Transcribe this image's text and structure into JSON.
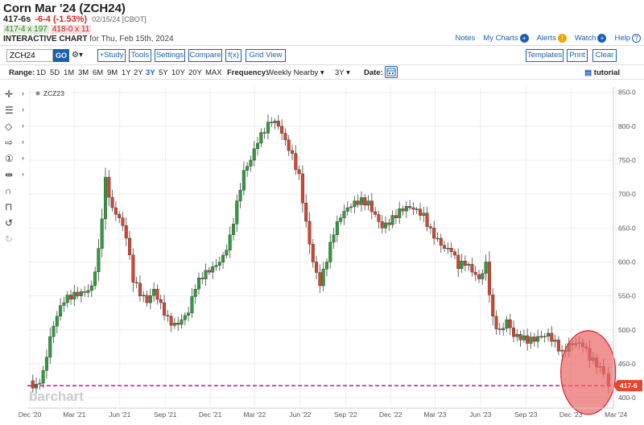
{
  "header": {
    "title": "Corn Mar '24 (ZCH24)",
    "last": "417-6s",
    "change": "-6-4 (-1.53%)",
    "date_exchange": "02/15/24 [CBOT]",
    "bid": "417-4 x 197",
    "ask": "418-0 x 11",
    "chart_label": "INTERACTIVE CHART",
    "chart_date": "for Thu, Feb 15th, 2024"
  },
  "links": {
    "notes": "Notes",
    "mycharts": "My Charts",
    "alerts": "Alerts",
    "watch": "Watch",
    "help": "Help"
  },
  "toolbar": {
    "symbol": "ZCH24",
    "go": "GO",
    "study": "+Study",
    "tools": "Tools",
    "settings": "Settings",
    "compare": "Compare",
    "fx": "f(x)",
    "gridview": "Grid View",
    "templates": "Templates",
    "print": "Print",
    "clear": "Clear"
  },
  "range": {
    "label": "Range:",
    "options": [
      "1D",
      "5D",
      "1M",
      "3M",
      "6M",
      "9M",
      "1Y",
      "2Y",
      "3Y",
      "5Y",
      "10Y",
      "20Y",
      "MAX"
    ],
    "active": "3Y",
    "frequency_label": "Frequency:",
    "frequency_value": "Weekly Nearby",
    "freq_range": "3Y",
    "date_label": "Date:",
    "tutorial": "tutorial"
  },
  "chart_data": {
    "type": "candlestick",
    "series_name": "ZCZ23",
    "last_price": 417.75,
    "last_price_label": "417-6",
    "y_ticks": [
      "850-0",
      "800-0",
      "750-0",
      "700-0",
      "650-0",
      "600-0",
      "550-0",
      "500-0",
      "450-0",
      "400-0"
    ],
    "y_values": [
      850,
      800,
      750,
      700,
      650,
      600,
      550,
      500,
      450,
      400
    ],
    "ylim": [
      387,
      858
    ],
    "x_ticks": [
      "Dec '20",
      "Mar '21",
      "Jun '21",
      "Sep '21",
      "Dec '21",
      "Mar '22",
      "Jun '22",
      "Sep '22",
      "Dec '22",
      "Mar '23",
      "Jun '23",
      "Sep '23",
      "Dec '23",
      "Mar '24"
    ],
    "x_tick_dates": [
      "2020-12-01",
      "2021-03-01",
      "2021-06-01",
      "2021-09-01",
      "2021-12-01",
      "2022-03-01",
      "2022-06-01",
      "2022-09-01",
      "2022-12-01",
      "2023-03-01",
      "2023-06-01",
      "2023-09-01",
      "2023-12-01",
      "2024-03-01"
    ],
    "xlim": [
      "2020-11-26",
      "2024-02-25"
    ],
    "grid": true,
    "watermark": "barchart",
    "highlight": {
      "type": "ellipse",
      "center_date": "2024-01-05",
      "center_price": 437,
      "color": "#ea6a6a"
    },
    "reference_line": {
      "price": 417.75,
      "color": "#c0188c",
      "style": "dashed"
    },
    "closes": [
      [
        "2020-11-30",
        425
      ],
      [
        "2020-12-14",
        420
      ],
      [
        "2020-12-28",
        440
      ],
      [
        "2021-01-11",
        490
      ],
      [
        "2021-01-25",
        520
      ],
      [
        "2021-02-08",
        540
      ],
      [
        "2021-02-22",
        545
      ],
      [
        "2021-03-08",
        550
      ],
      [
        "2021-03-22",
        555
      ],
      [
        "2021-04-05",
        565
      ],
      [
        "2021-04-19",
        620
      ],
      [
        "2021-05-03",
        725
      ],
      [
        "2021-05-17",
        680
      ],
      [
        "2021-05-31",
        665
      ],
      [
        "2021-06-14",
        635
      ],
      [
        "2021-06-28",
        570
      ],
      [
        "2021-07-12",
        550
      ],
      [
        "2021-07-26",
        540
      ],
      [
        "2021-08-09",
        560
      ],
      [
        "2021-08-23",
        540
      ],
      [
        "2021-09-06",
        520
      ],
      [
        "2021-09-20",
        510
      ],
      [
        "2021-10-04",
        515
      ],
      [
        "2021-10-18",
        525
      ],
      [
        "2021-11-01",
        560
      ],
      [
        "2021-11-15",
        575
      ],
      [
        "2021-11-29",
        585
      ],
      [
        "2021-12-13",
        595
      ],
      [
        "2021-12-27",
        610
      ],
      [
        "2022-01-10",
        640
      ],
      [
        "2022-01-24",
        690
      ],
      [
        "2022-02-07",
        735
      ],
      [
        "2022-02-21",
        750
      ],
      [
        "2022-03-07",
        775
      ],
      [
        "2022-03-21",
        790
      ],
      [
        "2022-04-04",
        805
      ],
      [
        "2022-04-18",
        800
      ],
      [
        "2022-05-02",
        780
      ],
      [
        "2022-05-16",
        760
      ],
      [
        "2022-05-30",
        730
      ],
      [
        "2022-06-13",
        660
      ],
      [
        "2022-06-27",
        600
      ],
      [
        "2022-07-11",
        565
      ],
      [
        "2022-07-25",
        600
      ],
      [
        "2022-08-08",
        640
      ],
      [
        "2022-08-22",
        665
      ],
      [
        "2022-09-05",
        680
      ],
      [
        "2022-09-19",
        690
      ],
      [
        "2022-10-03",
        695
      ],
      [
        "2022-10-17",
        690
      ],
      [
        "2022-10-31",
        670
      ],
      [
        "2022-11-14",
        650
      ],
      [
        "2022-11-28",
        655
      ],
      [
        "2022-12-12",
        665
      ],
      [
        "2022-12-26",
        675
      ],
      [
        "2023-01-09",
        680
      ],
      [
        "2023-01-23",
        678
      ],
      [
        "2023-02-06",
        672
      ],
      [
        "2023-02-20",
        650
      ],
      [
        "2023-03-06",
        635
      ],
      [
        "2023-03-20",
        620
      ],
      [
        "2023-04-03",
        615
      ],
      [
        "2023-04-17",
        590
      ],
      [
        "2023-05-01",
        595
      ],
      [
        "2023-05-15",
        585
      ],
      [
        "2023-05-29",
        575
      ],
      [
        "2023-06-12",
        600
      ],
      [
        "2023-06-26",
        520
      ],
      [
        "2023-07-10",
        500
      ],
      [
        "2023-07-24",
        515
      ],
      [
        "2023-08-07",
        490
      ],
      [
        "2023-08-21",
        485
      ],
      [
        "2023-09-04",
        480
      ],
      [
        "2023-09-18",
        483
      ],
      [
        "2023-10-02",
        490
      ],
      [
        "2023-10-16",
        495
      ],
      [
        "2023-10-30",
        485
      ],
      [
        "2023-11-13",
        470
      ],
      [
        "2023-11-27",
        480
      ],
      [
        "2023-12-11",
        480
      ],
      [
        "2023-12-25",
        475
      ],
      [
        "2024-01-08",
        455
      ],
      [
        "2024-01-22",
        445
      ],
      [
        "2024-02-05",
        435
      ],
      [
        "2024-02-15",
        417.75
      ]
    ]
  },
  "icons": [
    "crosshair-icon",
    "fibonacci-icon",
    "shapes-icon",
    "arrow-icon",
    "number-marker-icon",
    "measure-icon",
    "magnet-icon",
    "lock-icon",
    "undo-icon",
    "redo-icon"
  ]
}
